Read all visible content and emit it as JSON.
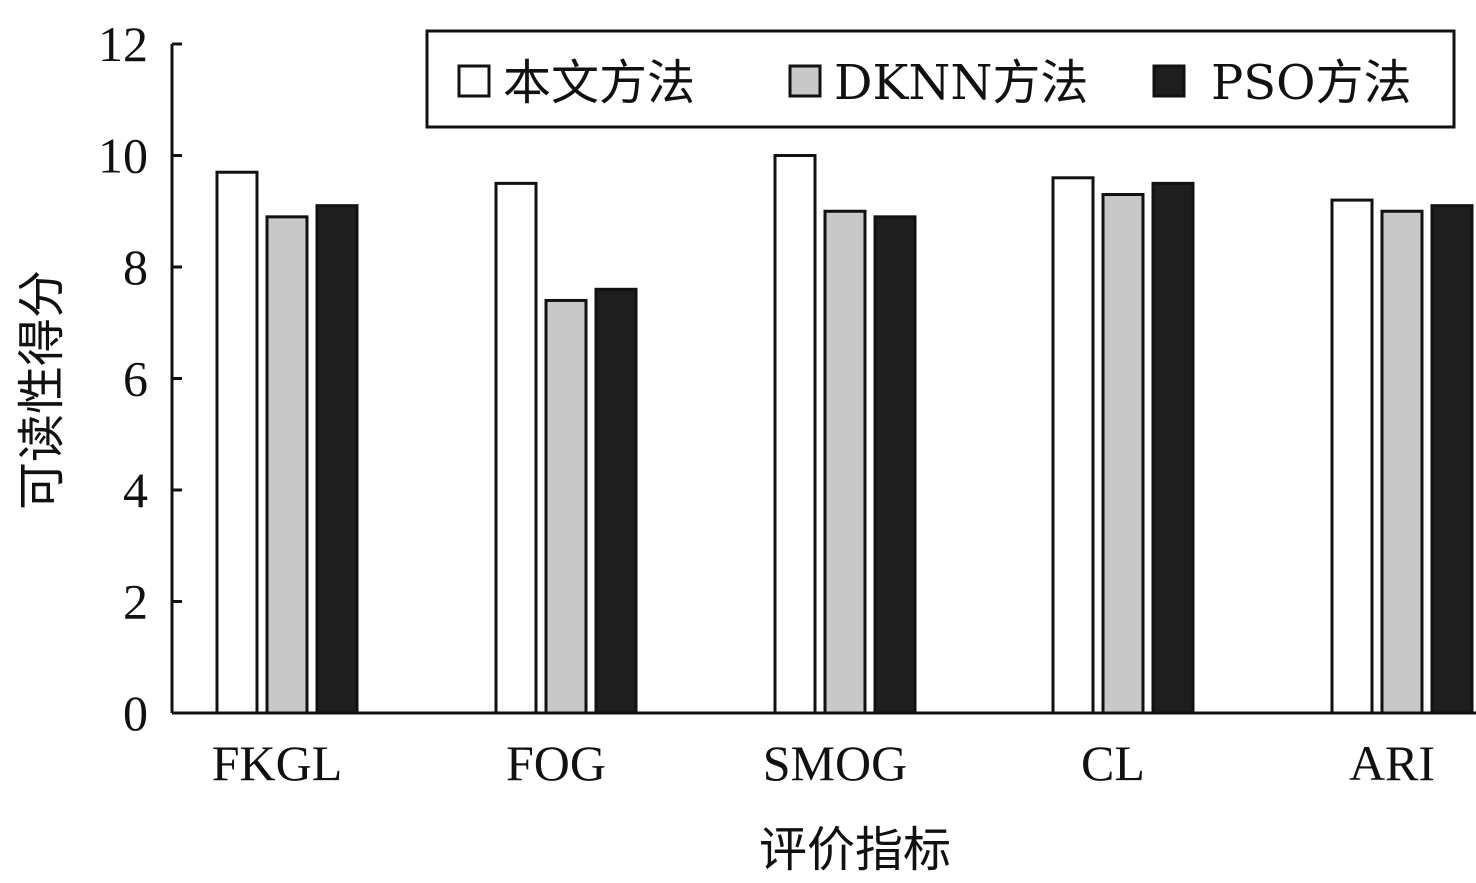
{
  "chart_data": {
    "type": "bar",
    "title": "",
    "xlabel": "评价指标",
    "ylabel": "可读性得分",
    "categories": [
      "FKGL",
      "FOG",
      "SMOG",
      "CL",
      "ARI"
    ],
    "series": [
      {
        "name": "本文方法",
        "values": [
          9.7,
          9.5,
          10.0,
          9.6,
          9.2
        ],
        "color": "#ffffff"
      },
      {
        "name": "DKNN方法",
        "values": [
          8.9,
          7.4,
          9.0,
          9.3,
          9.0
        ],
        "color": "#c8c8c8"
      },
      {
        "name": "PSO方法",
        "values": [
          9.1,
          7.6,
          8.9,
          9.5,
          9.1
        ],
        "color": "#1e1e1e"
      }
    ],
    "ylim": [
      0,
      12
    ],
    "yticks": [
      0,
      2,
      4,
      6,
      8,
      10,
      12
    ],
    "ytick_labels": [
      "0",
      "2",
      "4",
      "6",
      "8",
      "10",
      "12"
    ],
    "legend_position": "top-right",
    "grid": false
  }
}
